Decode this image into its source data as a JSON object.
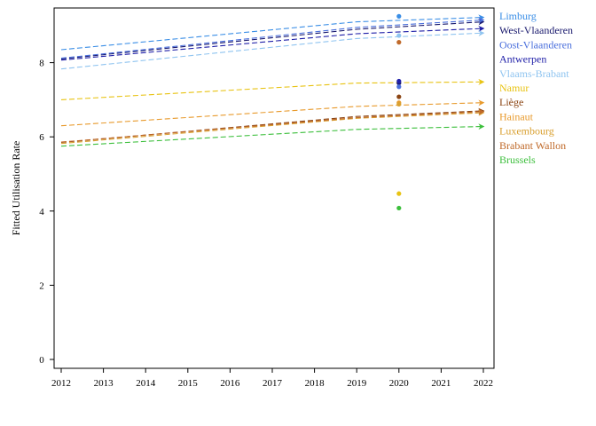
{
  "chart_data": {
    "type": "line",
    "title": "",
    "xlabel": "",
    "ylabel": "Fitted Utilisation Rate",
    "xlim": [
      2012,
      2022
    ],
    "ylim": [
      0,
      9.5
    ],
    "x_ticks": [
      2012,
      2013,
      2014,
      2015,
      2016,
      2017,
      2018,
      2019,
      2020,
      2021,
      2022
    ],
    "y_ticks": [
      0,
      2,
      4,
      6,
      8
    ],
    "legend_position": "right",
    "line_style": "dashed",
    "series": [
      {
        "name": "Limburg",
        "color": "#3a8ee6",
        "x": [
          2012,
          2019,
          2022
        ],
        "y": [
          8.35,
          9.1,
          9.22
        ],
        "observed": {
          "x": 2020,
          "y": 9.25
        }
      },
      {
        "name": "West-Vlaanderen",
        "color": "#1a1a6e",
        "x": [
          2012,
          2019,
          2022
        ],
        "y": [
          8.1,
          8.9,
          9.1
        ],
        "observed": {
          "x": 2020,
          "y": 7.45
        }
      },
      {
        "name": "Oost-Vlaanderen",
        "color": "#4a6fdc",
        "x": [
          2012,
          2019,
          2022
        ],
        "y": [
          8.12,
          8.95,
          9.15
        ],
        "observed": {
          "x": 2020,
          "y": 7.35
        }
      },
      {
        "name": "Antwerpen",
        "color": "#1f1fa8",
        "x": [
          2012,
          2019,
          2022
        ],
        "y": [
          8.07,
          8.78,
          8.92
        ],
        "observed": {
          "x": 2020,
          "y": 7.5
        }
      },
      {
        "name": "Vlaams-Brabant",
        "color": "#8fc4f0",
        "x": [
          2012,
          2019,
          2022
        ],
        "y": [
          7.83,
          8.65,
          8.8
        ],
        "observed": {
          "x": 2020,
          "y": 8.73
        }
      },
      {
        "name": "Namur",
        "color": "#e8c313",
        "x": [
          2012,
          2019,
          2022
        ],
        "y": [
          7.0,
          7.45,
          7.48
        ],
        "observed": {
          "x": 2020,
          "y": 4.47
        }
      },
      {
        "name": "Liège",
        "color": "#8b4513",
        "x": [
          2012,
          2019,
          2022
        ],
        "y": [
          5.85,
          6.55,
          6.7
        ],
        "observed": {
          "x": 2020,
          "y": 7.08
        }
      },
      {
        "name": "Hainaut",
        "color": "#e89a2c",
        "x": [
          2012,
          2019,
          2022
        ],
        "y": [
          6.3,
          6.82,
          6.92
        ],
        "observed": {
          "x": 2020,
          "y": 6.92
        }
      },
      {
        "name": "Luxembourg",
        "color": "#d9a030",
        "x": [
          2012,
          2019,
          2022
        ],
        "y": [
          5.82,
          6.5,
          6.65
        ],
        "observed": {
          "x": 2020,
          "y": 6.88
        }
      },
      {
        "name": "Brabant Wallon",
        "color": "#c06a2a",
        "x": [
          2012,
          2019,
          2022
        ],
        "y": [
          5.86,
          6.52,
          6.68
        ],
        "observed": {
          "x": 2020,
          "y": 8.55
        }
      },
      {
        "name": "Brussels",
        "color": "#3cbf3c",
        "x": [
          2012,
          2019,
          2022
        ],
        "y": [
          5.75,
          6.2,
          6.28
        ],
        "observed": {
          "x": 2020,
          "y": 4.08
        }
      }
    ]
  }
}
